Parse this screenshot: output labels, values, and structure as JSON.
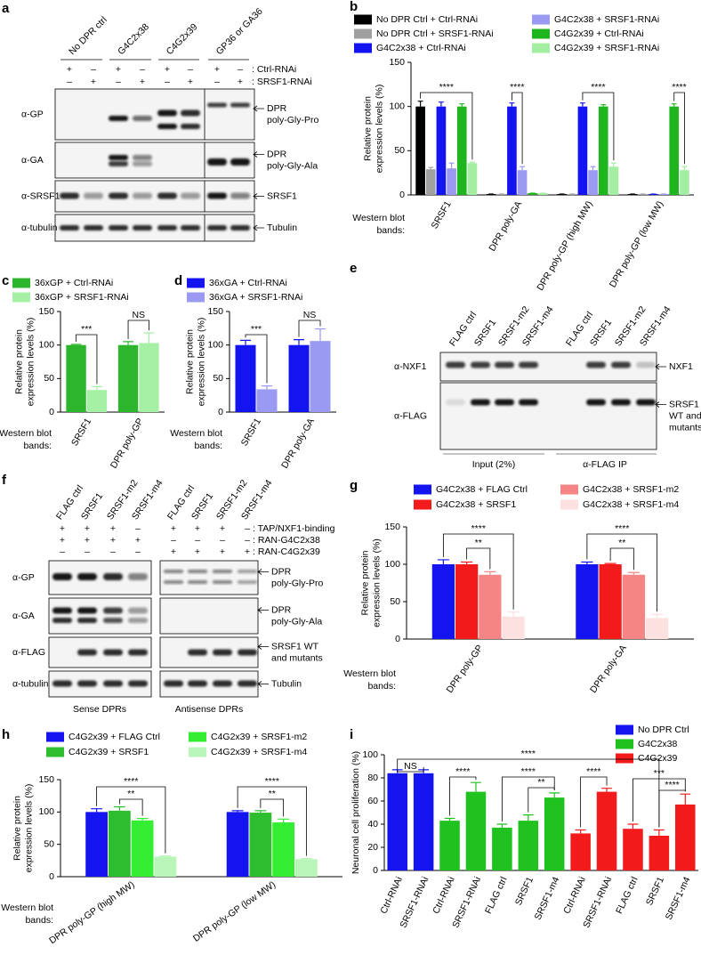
{
  "chart_data": [
    {
      "panel": "b",
      "type": "bar",
      "ylabel": [
        "Relative protein",
        "expression levels (%)"
      ],
      "xlabel": [
        "Western blot",
        "bands:"
      ],
      "categories": [
        "SRSF1",
        "DPR poly-GA",
        "DPR poly-GP (high MW)",
        "DPR poly-GP (low MW)"
      ],
      "series": [
        {
          "name": "No DPR Ctrl + Ctrl-RNAi",
          "color": "#000000",
          "values": [
            100,
            1,
            1,
            1
          ],
          "errors": [
            6,
            0,
            0,
            0
          ]
        },
        {
          "name": "No DPR Ctrl + SRSF1-RNAi",
          "color": "#a0a0a0",
          "values": [
            29,
            1,
            1,
            1
          ],
          "errors": [
            2,
            0,
            0,
            0
          ]
        },
        {
          "name": "G4C2x38 + Ctrl-RNAi",
          "color": "#1414f0",
          "values": [
            100,
            100,
            100,
            1
          ],
          "errors": [
            5,
            4,
            4,
            0
          ]
        },
        {
          "name": "G4C2x38 + SRSF1-RNAi",
          "color": "#9a9af2",
          "values": [
            30,
            28,
            28,
            1
          ],
          "errors": [
            6,
            4,
            4,
            0
          ]
        },
        {
          "name": "C4G2x39 + Ctrl-RNAi",
          "color": "#1fb51f",
          "values": [
            100,
            2,
            100,
            100
          ],
          "errors": [
            3,
            0,
            2,
            3
          ]
        },
        {
          "name": "C4G2x39 + SRSF1-RNAi",
          "color": "#a4eea4",
          "values": [
            36,
            2,
            32,
            28
          ],
          "errors": [
            1,
            0,
            4,
            4
          ]
        }
      ],
      "ylim": [
        0,
        150
      ],
      "yticks": [
        0,
        50,
        100,
        150
      ],
      "annotations": [
        "****",
        "****",
        "****",
        "****"
      ]
    },
    {
      "panel": "c",
      "type": "bar",
      "ylabel": [
        "Relative protein",
        "expression levels (%)"
      ],
      "xlabel": [
        "Western blot",
        "bands:"
      ],
      "categories": [
        "SRSF1",
        "DPR poly-GP"
      ],
      "series": [
        {
          "name": "36xGP + Ctrl-RNAi",
          "color": "#2db52d",
          "values": [
            100,
            100
          ],
          "errors": [
            1,
            5
          ]
        },
        {
          "name": "36xGP + SRSF1-RNAi",
          "color": "#a6f0a6",
          "values": [
            33,
            103
          ],
          "errors": [
            5,
            15
          ]
        }
      ],
      "ylim": [
        0,
        150
      ],
      "yticks": [
        0,
        50,
        100,
        150
      ],
      "annotations": [
        "***",
        "NS"
      ]
    },
    {
      "panel": "d",
      "type": "bar",
      "ylabel": [
        "Relative protein",
        "expression levels (%)"
      ],
      "xlabel": [
        "Western blot",
        "bands:"
      ],
      "categories": [
        "SRSF1",
        "DPR poly-GA"
      ],
      "series": [
        {
          "name": "36xGA + Ctrl-RNAi",
          "color": "#1414f0",
          "values": [
            100,
            100
          ],
          "errors": [
            7,
            8
          ]
        },
        {
          "name": "36xGA + SRSF1-RNAi",
          "color": "#9a9af2",
          "values": [
            34,
            106
          ],
          "errors": [
            5,
            18
          ]
        }
      ],
      "ylim": [
        0,
        150
      ],
      "yticks": [
        0,
        50,
        100,
        150
      ],
      "annotations": [
        "***",
        "NS"
      ]
    },
    {
      "panel": "g",
      "type": "bar",
      "ylabel": [
        "Relative protein",
        "expression levels (%)"
      ],
      "xlabel": [
        "Western blot",
        "bands:"
      ],
      "categories": [
        "DPR poly-GP",
        "DPR poly-GA"
      ],
      "series": [
        {
          "name": "G4C2x38 + FLAG Ctrl",
          "color": "#1414f0",
          "values": [
            100,
            100
          ],
          "errors": [
            6,
            3
          ]
        },
        {
          "name": "G4C2x38 + SRSF1",
          "color": "#f21a1a",
          "values": [
            100,
            100
          ],
          "errors": [
            3,
            1
          ]
        },
        {
          "name": "G4C2x38 + SRSF1-m2",
          "color": "#f58585",
          "values": [
            86,
            86
          ],
          "errors": [
            4,
            3
          ]
        },
        {
          "name": "G4C2x38 + SRSF1-m4",
          "color": "#fde0e0",
          "values": [
            30,
            28
          ],
          "errors": [
            6,
            5
          ]
        }
      ],
      "ylim": [
        0,
        150
      ],
      "yticks": [
        0,
        50,
        100,
        150
      ],
      "annotations": [
        "****",
        "**",
        "****",
        "**"
      ]
    },
    {
      "panel": "h",
      "type": "bar",
      "ylabel": [
        "Relative protein",
        "expression levels (%)"
      ],
      "xlabel": [
        "Western blot",
        "bands:"
      ],
      "categories": [
        "DPR poly-GP (high MW)",
        "DPR poly-GP (low MW)"
      ],
      "series": [
        {
          "name": "C4G2x39 + FLAG Ctrl",
          "color": "#1414f0",
          "values": [
            100,
            100
          ],
          "errors": [
            5,
            2
          ]
        },
        {
          "name": "C4G2x39 + SRSF1",
          "color": "#2ebd2e",
          "values": [
            102,
            99
          ],
          "errors": [
            6,
            3
          ]
        },
        {
          "name": "C4G2x39 + SRSF1-m2",
          "color": "#33ee33",
          "values": [
            87,
            84
          ],
          "errors": [
            3,
            5
          ]
        },
        {
          "name": "C4G2x39 + SRSF1-m4",
          "color": "#b9f5b9",
          "values": [
            31,
            27
          ],
          "errors": [
            1,
            1
          ]
        }
      ],
      "ylim": [
        0,
        150
      ],
      "yticks": [
        0,
        50,
        100,
        150
      ],
      "annotations": [
        "****",
        "**",
        "****",
        "**"
      ]
    },
    {
      "panel": "i",
      "type": "bar",
      "ylabel": [
        "Neuronal cell proliferation (%)"
      ],
      "categories": [
        "Ctrl-RNAi",
        "SRSF1-RNAi",
        "Ctrl-RNAi",
        "SRSF1-RNAi",
        "FLAG ctrl",
        "SRSF1",
        "SRSF1-m4",
        "Ctrl-RNAi",
        "SRSF1-RNAi",
        "FLAG ctrl",
        "SRSF1",
        "SRSF1-m4"
      ],
      "series": [
        {
          "name": "No DPR Ctrl",
          "color": "#1414f0",
          "values": [
            84,
            84,
            null,
            null,
            null,
            null,
            null,
            null,
            null,
            null,
            null,
            null
          ],
          "errors": [
            3,
            3,
            null,
            null,
            null,
            null,
            null,
            null,
            null,
            null,
            null,
            null
          ]
        },
        {
          "name": "G4C2x38",
          "color": "#1fc21f",
          "values": [
            null,
            null,
            43,
            68,
            37,
            43,
            63,
            null,
            null,
            null,
            null,
            null
          ],
          "errors": [
            null,
            null,
            2,
            8,
            3,
            5,
            4,
            null,
            null,
            null,
            null,
            null
          ]
        },
        {
          "name": "C4G2x39",
          "color": "#f21a1a",
          "values": [
            null,
            null,
            null,
            null,
            null,
            null,
            null,
            32,
            68,
            36,
            30,
            57
          ],
          "errors": [
            null,
            null,
            null,
            null,
            null,
            null,
            null,
            3,
            3,
            4,
            5,
            9
          ]
        }
      ],
      "ylim": [
        0,
        100
      ],
      "yticks": [
        0,
        20,
        40,
        60,
        80,
        100
      ],
      "annotations": [
        "****",
        "NS",
        "****",
        "****",
        "**",
        "****",
        "***",
        "****"
      ]
    }
  ],
  "blots": [
    {
      "panel": "a",
      "columns": [
        "No DPR ctrl",
        "G4C2x38",
        "C4G2x39",
        "GP36 or GA36"
      ],
      "conditions": [
        {
          "label": ": Ctrl-RNAi",
          "signs": [
            "+",
            "–",
            "+",
            "–",
            "+",
            "–",
            "+",
            "–"
          ]
        },
        {
          "label": ": SRSF1-RNAi",
          "signs": [
            "–",
            "+",
            "–",
            "+",
            "–",
            "+",
            "–",
            "+"
          ]
        }
      ],
      "rows": [
        {
          "antibody": "α-GP",
          "target": [
            "DPR",
            "poly-Gly-Pro"
          ]
        },
        {
          "antibody": "α-GA",
          "target": [
            "DPR",
            "poly-Gly-Ala"
          ]
        },
        {
          "antibody": "α-SRSF1",
          "target": [
            "SRSF1"
          ]
        },
        {
          "antibody": "α-tubulin",
          "target": [
            "Tubulin"
          ]
        }
      ]
    },
    {
      "panel": "e",
      "lanes": [
        "FLAG ctrl",
        "SRSF1",
        "SRSF1-m2",
        "SRSF1-m4",
        "FLAG ctrl",
        "SRSF1",
        "SRSF1-m2",
        "SRSF1-m4"
      ],
      "rows": [
        {
          "antibody": "α-NXF1",
          "target": [
            "NXF1"
          ]
        },
        {
          "antibody": "α-FLAG",
          "target": [
            "SRSF1",
            "WT and",
            "mutants"
          ]
        }
      ],
      "groups": [
        "Input (2%)",
        "α-FLAG IP"
      ]
    },
    {
      "panel": "f",
      "lanes": [
        "FLAG ctrl",
        "SRSF1",
        "SRSF1-m2",
        "SRSF1-m4",
        "FLAG ctrl",
        "SRSF1",
        "SRSF1-m2",
        "SRSF1-m4"
      ],
      "conditions": [
        {
          "label": ": TAP/NXF1-binding",
          "signs": [
            "+",
            "+",
            "+",
            "–",
            "+",
            "+",
            "+",
            "–"
          ]
        },
        {
          "label": ": RAN-G4C2x38",
          "signs": [
            "+",
            "+",
            "+",
            "+",
            "–",
            "–",
            "–",
            "–"
          ]
        },
        {
          "label": ": RAN-C4G2x39",
          "signs": [
            "–",
            "–",
            "–",
            "–",
            "+",
            "+",
            "+",
            "+"
          ]
        }
      ],
      "rows": [
        {
          "antibody": "α-GP",
          "target": [
            "DPR",
            "poly-Gly-Pro"
          ]
        },
        {
          "antibody": "α-GA",
          "target": [
            "DPR",
            "poly-Gly-Ala"
          ]
        },
        {
          "antibody": "α-FLAG",
          "target": [
            "SRSF1 WT",
            "and mutants"
          ]
        },
        {
          "antibody": "α-tubulin",
          "target": [
            "Tubulin"
          ]
        }
      ],
      "groups": [
        "Sense DPRs",
        "Antisense DPRs"
      ]
    }
  ]
}
